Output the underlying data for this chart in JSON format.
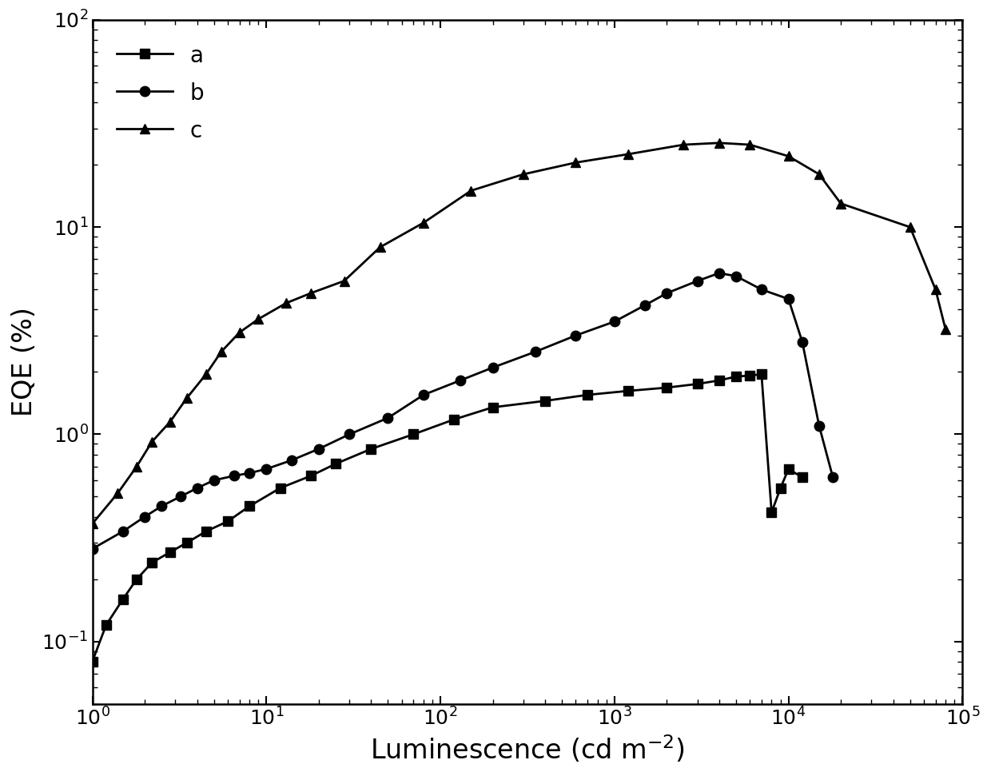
{
  "series_a": {
    "label": "a",
    "marker": "s",
    "x": [
      1.0,
      1.2,
      1.5,
      1.8,
      2.2,
      2.8,
      3.5,
      4.5,
      6.0,
      8.0,
      12.0,
      18.0,
      25.0,
      40.0,
      70.0,
      120.0,
      200.0,
      400.0,
      700.0,
      1200.0,
      2000.0,
      3000.0,
      4000.0,
      5000.0,
      6000.0,
      7000.0,
      8000.0,
      9000.0,
      10000.0,
      12000.0
    ],
    "y": [
      0.08,
      0.12,
      0.16,
      0.2,
      0.24,
      0.27,
      0.3,
      0.34,
      0.38,
      0.45,
      0.55,
      0.63,
      0.72,
      0.85,
      1.0,
      1.18,
      1.35,
      1.45,
      1.55,
      1.62,
      1.68,
      1.75,
      1.82,
      1.9,
      1.92,
      1.95,
      0.42,
      0.55,
      0.68,
      0.62
    ]
  },
  "series_b": {
    "label": "b",
    "marker": "o",
    "x": [
      1.0,
      1.5,
      2.0,
      2.5,
      3.2,
      4.0,
      5.0,
      6.5,
      8.0,
      10.0,
      14.0,
      20.0,
      30.0,
      50.0,
      80.0,
      130.0,
      200.0,
      350.0,
      600.0,
      1000.0,
      1500.0,
      2000.0,
      3000.0,
      4000.0,
      5000.0,
      7000.0,
      10000.0,
      12000.0,
      15000.0,
      18000.0
    ],
    "y": [
      0.28,
      0.34,
      0.4,
      0.45,
      0.5,
      0.55,
      0.6,
      0.63,
      0.65,
      0.68,
      0.75,
      0.85,
      1.0,
      1.2,
      1.55,
      1.82,
      2.1,
      2.5,
      3.0,
      3.5,
      4.2,
      4.8,
      5.5,
      6.0,
      5.8,
      5.0,
      4.5,
      2.8,
      1.1,
      0.62
    ]
  },
  "series_c": {
    "label": "c",
    "marker": "^",
    "x": [
      1.0,
      1.4,
      1.8,
      2.2,
      2.8,
      3.5,
      4.5,
      5.5,
      7.0,
      9.0,
      13.0,
      18.0,
      28.0,
      45.0,
      80.0,
      150.0,
      300.0,
      600.0,
      1200.0,
      2500.0,
      4000.0,
      6000.0,
      10000.0,
      15000.0,
      20000.0,
      50000.0,
      70000.0,
      80000.0
    ],
    "y": [
      0.37,
      0.52,
      0.7,
      0.92,
      1.15,
      1.5,
      1.95,
      2.5,
      3.1,
      3.6,
      4.3,
      4.8,
      5.5,
      8.0,
      10.5,
      15.0,
      18.0,
      20.5,
      22.5,
      25.0,
      25.5,
      25.0,
      22.0,
      18.0,
      13.0,
      10.0,
      5.0,
      3.2
    ]
  },
  "xlabel": "Luminescence (cd m$^{-2}$)",
  "ylabel": "EQE (%)",
  "xlim": [
    1.0,
    100000.0
  ],
  "ylim": [
    0.05,
    100.0
  ],
  "line_color": "#000000",
  "background_color": "#ffffff",
  "legend_fontsize": 20,
  "axis_fontsize": 24,
  "tick_fontsize": 18,
  "linewidth": 2.0,
  "markersize": 9
}
